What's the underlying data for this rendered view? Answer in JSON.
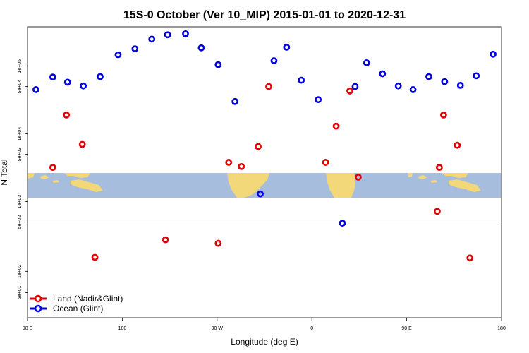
{
  "chart_data": {
    "type": "scatter",
    "title": "15S-0 October (Ver 10_MIP)   2015-01-01 to 2020-12-31",
    "xlabel": "Longitude (deg E)",
    "ylabel": "N Total",
    "x_ticks": [
      {
        "lon": 90,
        "label": "90 E"
      },
      {
        "lon": 180,
        "label": "180"
      },
      {
        "lon": 270,
        "label": "90 W"
      },
      {
        "lon": 360,
        "label": "0"
      },
      {
        "lon": 450,
        "label": "90 E"
      },
      {
        "lon": 540,
        "label": "180"
      }
    ],
    "xlim": [
      90,
      540
    ],
    "y_ticks_upper": [
      {
        "value": 1000,
        "label": "1e+03"
      },
      {
        "value": 5000,
        "label": "5e+03"
      },
      {
        "value": 10000,
        "label": "1e+04"
      },
      {
        "value": 50000,
        "label": "5e+04"
      },
      {
        "value": 100000,
        "label": "1e+05"
      }
    ],
    "y_ticks_lower": [
      {
        "value": 50,
        "label": "5e+01"
      },
      {
        "value": 100,
        "label": "1e+02"
      },
      {
        "value": 500,
        "label": "5e+02"
      }
    ],
    "ylim_upper": [
      500,
      380000
    ],
    "ylim_lower": [
      22,
      500
    ],
    "log_scale": true,
    "legend_position": "bottom-left",
    "series": [
      {
        "name": "Land (Nadir&Glint)",
        "color": "#e00000",
        "points": [
          [
            114,
            3200
          ],
          [
            127,
            19000
          ],
          [
            142,
            7000
          ],
          [
            154,
            158
          ],
          [
            221,
            280
          ],
          [
            271,
            250
          ],
          [
            281,
            3800
          ],
          [
            293,
            3300
          ],
          [
            309,
            6500
          ],
          [
            319,
            50000
          ],
          [
            373,
            3800
          ],
          [
            383,
            13000
          ],
          [
            396,
            43000
          ],
          [
            404,
            2300
          ],
          [
            479,
            720
          ],
          [
            481,
            3200
          ],
          [
            485,
            19000
          ],
          [
            498,
            6800
          ],
          [
            510,
            155
          ]
        ]
      },
      {
        "name": "Ocean (Glint)",
        "color": "#0000e0",
        "points": [
          [
            98,
            45000
          ],
          [
            114,
            69000
          ],
          [
            128,
            58000
          ],
          [
            143,
            51000
          ],
          [
            159,
            70000
          ],
          [
            176,
            147000
          ],
          [
            192,
            180000
          ],
          [
            208,
            250000
          ],
          [
            223,
            290000
          ],
          [
            240,
            300000
          ],
          [
            255,
            186000
          ],
          [
            271,
            105000
          ],
          [
            287,
            30000
          ],
          [
            311,
            1300
          ],
          [
            324,
            120000
          ],
          [
            336,
            190000
          ],
          [
            350,
            62000
          ],
          [
            366,
            32000
          ],
          [
            389,
            482
          ],
          [
            401,
            50000
          ],
          [
            412,
            112000
          ],
          [
            427,
            77000
          ],
          [
            442,
            51000
          ],
          [
            456,
            45000
          ],
          [
            471,
            70000
          ],
          [
            486,
            59000
          ],
          [
            501,
            52000
          ],
          [
            516,
            72000
          ],
          [
            532,
            150000
          ]
        ]
      }
    ]
  }
}
